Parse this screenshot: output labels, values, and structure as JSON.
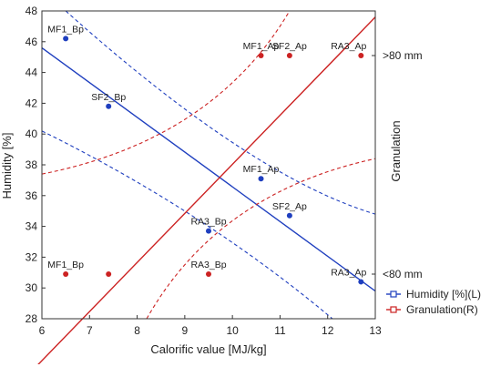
{
  "chart_data": {
    "type": "scatter",
    "xlabel": "Calorific value [MJ/kg]",
    "ylabel": "Humidity [%]",
    "y2label": "Granulation",
    "xlim": [
      6,
      13
    ],
    "ylim": [
      28,
      48
    ],
    "xticks": [
      "6",
      "7",
      "8",
      "9",
      "10",
      "11",
      "12",
      "13"
    ],
    "yticks": [
      "28",
      "30",
      "32",
      "34",
      "36",
      "38",
      "40",
      "42",
      "44",
      "46",
      "48"
    ],
    "y2ticks": [
      {
        "label": ">80 mm",
        "y": 45.1
      },
      {
        "label": "<80 mm",
        "y": 30.9
      }
    ],
    "grid": false,
    "legend_position": "bottom-right",
    "colors": {
      "humidity": "#1f3fbf",
      "granulation": "#cc2222"
    },
    "series": [
      {
        "name": "Humidity [%](L)",
        "color": "#1f3fbf",
        "points": [
          {
            "label": "MF1_Bp",
            "x": 6.5,
            "y": 46.2
          },
          {
            "label": "SF2_Bp",
            "x": 7.4,
            "y": 41.8
          },
          {
            "label": "MF1_Ap",
            "x": 10.6,
            "y": 37.1
          },
          {
            "label": "RA3_Bp",
            "x": 9.5,
            "y": 33.7
          },
          {
            "label": "SF2_Ap",
            "x": 11.2,
            "y": 34.7
          },
          {
            "label": "RA3_Ap",
            "x": 12.7,
            "y": 30.4
          }
        ]
      },
      {
        "name": "Granulation(R)",
        "color": "#cc2222",
        "points": [
          {
            "label": "MF1_Ap",
            "x": 10.6,
            "y": 45.1
          },
          {
            "label": "SF2_Ap",
            "x": 11.2,
            "y": 45.1
          },
          {
            "label": "RA3_Ap",
            "x": 12.7,
            "y": 45.1
          },
          {
            "label": "MF1_Bp",
            "x": 6.5,
            "y": 30.9
          },
          {
            "label": "",
            "x": 7.4,
            "y": 30.9
          },
          {
            "label": "RA3_Bp",
            "x": 9.5,
            "y": 30.9
          }
        ]
      }
    ],
    "fits": [
      {
        "series": "Humidity [%](L)",
        "color": "#1f3fbf",
        "line": {
          "x1": 6,
          "y1": 45.6,
          "x2": 13,
          "y2": 29.8
        },
        "band_upper": {
          "x1": 6.5,
          "y1": 48,
          "x2": 13,
          "y2": 34.8,
          "cx": 10.4,
          "cy": 37.2
        },
        "band_lower": {
          "x1": 6,
          "y1": 40.2,
          "x2": 12.1,
          "y2": 28,
          "cx": 9.4,
          "cy": 35.0
        }
      },
      {
        "series": "Granulation(R)",
        "color": "#cc2222",
        "line": {
          "x1": 5.6,
          "y1": 24.0,
          "x2": 13,
          "y2": 47.6
        },
        "band_upper": {
          "x1": 6,
          "y1": 37.4,
          "x2": 11.2,
          "y2": 48,
          "cx": 9.6,
          "cy": 39.6
        },
        "band_lower": {
          "x1": 8.2,
          "y1": 28,
          "x2": 13,
          "y2": 38.4,
          "cx": 9.7,
          "cy": 36.2
        }
      }
    ]
  }
}
